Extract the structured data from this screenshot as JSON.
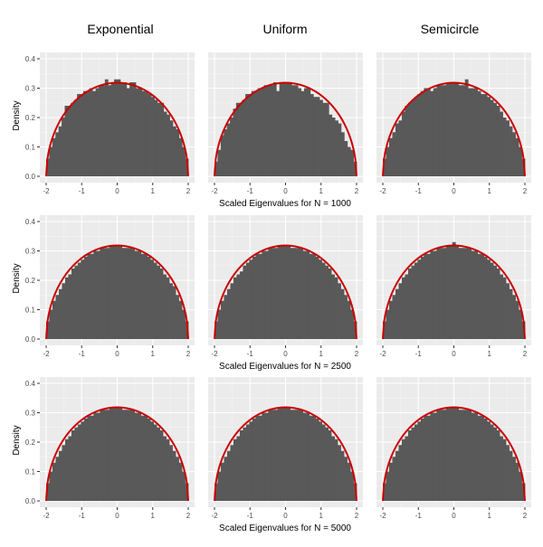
{
  "figure": {
    "column_titles": [
      "Exponential",
      "Uniform",
      "Semicircle"
    ],
    "ylabel": "Density",
    "row_xlabels": [
      "Scaled Eigenvalues for N = 1000",
      "Scaled Eigenvalues for N = 2500",
      "Scaled Eigenvalues for N = 5000"
    ],
    "colors": {
      "panel_background": "#ebebeb",
      "grid_major": "#ffffff",
      "bars": "#595959",
      "curve": "#cc0000"
    }
  },
  "chart_data": [
    {
      "type": "bar",
      "row": 0,
      "col": 0,
      "title": "Exponential",
      "xlabel": "Scaled Eigenvalues for N = 1000",
      "ylabel": "Density",
      "xlim": [
        -2,
        2
      ],
      "ylim": [
        0,
        0.4
      ],
      "xticks": [
        "-2",
        "-1",
        "0",
        "1",
        "2"
      ],
      "yticks": [
        "0.0",
        "0.1",
        "0.2",
        "0.3",
        "0.4"
      ],
      "grid": true,
      "overlay": "semicircle density",
      "bar_values": [
        0.06,
        0.1,
        0.13,
        0.15,
        0.17,
        0.2,
        0.24,
        0.24,
        0.25,
        0.26,
        0.28,
        0.28,
        0.29,
        0.29,
        0.3,
        0.29,
        0.3,
        0.31,
        0.31,
        0.33,
        0.31,
        0.32,
        0.33,
        0.33,
        0.32,
        0.32,
        0.3,
        0.32,
        0.32,
        0.3,
        0.3,
        0.29,
        0.29,
        0.28,
        0.27,
        0.26,
        0.25,
        0.25,
        0.22,
        0.21,
        0.19,
        0.17,
        0.16,
        0.13,
        0.1,
        0.06
      ]
    },
    {
      "type": "bar",
      "row": 0,
      "col": 1,
      "title": "Uniform",
      "xlabel": "Scaled Eigenvalues for N = 1000",
      "ylabel": "Density",
      "xlim": [
        -2,
        2
      ],
      "ylim": [
        0,
        0.4
      ],
      "xticks": [
        "-2",
        "-1",
        "0",
        "1",
        "2"
      ],
      "yticks": [
        "0.0",
        "0.1",
        "0.2",
        "0.3",
        "0.4"
      ],
      "grid": true,
      "overlay": "semicircle density",
      "bar_values": [
        0.05,
        0.09,
        0.14,
        0.16,
        0.18,
        0.2,
        0.23,
        0.25,
        0.25,
        0.26,
        0.28,
        0.28,
        0.29,
        0.29,
        0.3,
        0.3,
        0.31,
        0.31,
        0.31,
        0.32,
        0.29,
        0.32,
        0.32,
        0.32,
        0.32,
        0.31,
        0.31,
        0.3,
        0.29,
        0.3,
        0.3,
        0.28,
        0.27,
        0.27,
        0.26,
        0.25,
        0.25,
        0.21,
        0.2,
        0.19,
        0.18,
        0.15,
        0.12,
        0.1,
        0.09,
        0.05
      ]
    },
    {
      "type": "bar",
      "row": 0,
      "col": 2,
      "title": "Semicircle",
      "xlabel": "Scaled Eigenvalues for N = 1000",
      "ylabel": "Density",
      "xlim": [
        -2,
        2
      ],
      "ylim": [
        0,
        0.4
      ],
      "xticks": [
        "-2",
        "-1",
        "0",
        "1",
        "2"
      ],
      "yticks": [
        "0.0",
        "0.1",
        "0.2",
        "0.3",
        "0.4"
      ],
      "grid": true,
      "overlay": "semicircle density",
      "bar_values": [
        0.06,
        0.1,
        0.13,
        0.15,
        0.18,
        0.19,
        0.22,
        0.24,
        0.25,
        0.26,
        0.27,
        0.28,
        0.29,
        0.3,
        0.3,
        0.29,
        0.3,
        0.31,
        0.31,
        0.31,
        0.32,
        0.32,
        0.32,
        0.32,
        0.31,
        0.31,
        0.33,
        0.3,
        0.3,
        0.3,
        0.29,
        0.28,
        0.28,
        0.27,
        0.26,
        0.25,
        0.24,
        0.22,
        0.2,
        0.19,
        0.17,
        0.15,
        0.13,
        0.1,
        0.06
      ]
    },
    {
      "type": "bar",
      "row": 1,
      "col": 0,
      "title": "Exponential",
      "xlabel": "Scaled Eigenvalues for N = 2500",
      "ylabel": "Density",
      "xlim": [
        -2,
        2
      ],
      "ylim": [
        0,
        0.4
      ],
      "xticks": [
        "-2",
        "-1",
        "0",
        "1",
        "2"
      ],
      "yticks": [
        "0.0",
        "0.1",
        "0.2",
        "0.3",
        "0.4"
      ],
      "grid": true,
      "overlay": "semicircle density",
      "bar_values": [
        0.06,
        0.1,
        0.13,
        0.15,
        0.17,
        0.19,
        0.21,
        0.22,
        0.24,
        0.25,
        0.26,
        0.27,
        0.28,
        0.29,
        0.29,
        0.3,
        0.3,
        0.31,
        0.31,
        0.31,
        0.32,
        0.32,
        0.32,
        0.32,
        0.31,
        0.31,
        0.31,
        0.31,
        0.3,
        0.3,
        0.29,
        0.29,
        0.28,
        0.27,
        0.26,
        0.25,
        0.24,
        0.22,
        0.21,
        0.19,
        0.18,
        0.15,
        0.13,
        0.1,
        0.06
      ]
    },
    {
      "type": "bar",
      "row": 1,
      "col": 1,
      "title": "Uniform",
      "xlabel": "Scaled Eigenvalues for N = 2500",
      "ylabel": "Density",
      "xlim": [
        -2,
        2
      ],
      "ylim": [
        0,
        0.4
      ],
      "xticks": [
        "-2",
        "-1",
        "0",
        "1",
        "2"
      ],
      "yticks": [
        "0.0",
        "0.1",
        "0.2",
        "0.3",
        "0.4"
      ],
      "grid": true,
      "overlay": "semicircle density",
      "bar_values": [
        0.06,
        0.1,
        0.13,
        0.15,
        0.17,
        0.19,
        0.21,
        0.22,
        0.23,
        0.25,
        0.26,
        0.27,
        0.28,
        0.29,
        0.29,
        0.3,
        0.3,
        0.31,
        0.31,
        0.31,
        0.32,
        0.32,
        0.32,
        0.32,
        0.31,
        0.31,
        0.31,
        0.31,
        0.3,
        0.3,
        0.29,
        0.29,
        0.28,
        0.27,
        0.26,
        0.25,
        0.24,
        0.22,
        0.21,
        0.19,
        0.17,
        0.15,
        0.13,
        0.1,
        0.06
      ]
    },
    {
      "type": "bar",
      "row": 1,
      "col": 2,
      "title": "Semicircle",
      "xlabel": "Scaled Eigenvalues for N = 2500",
      "ylabel": "Density",
      "xlim": [
        -2,
        2
      ],
      "ylim": [
        0,
        0.4
      ],
      "xticks": [
        "-2",
        "-1",
        "0",
        "1",
        "2"
      ],
      "yticks": [
        "0.0",
        "0.1",
        "0.2",
        "0.3",
        "0.4"
      ],
      "grid": true,
      "overlay": "semicircle density",
      "bar_values": [
        0.06,
        0.1,
        0.13,
        0.15,
        0.17,
        0.19,
        0.21,
        0.22,
        0.24,
        0.25,
        0.26,
        0.27,
        0.28,
        0.29,
        0.29,
        0.3,
        0.3,
        0.31,
        0.31,
        0.31,
        0.32,
        0.32,
        0.33,
        0.32,
        0.31,
        0.31,
        0.31,
        0.31,
        0.3,
        0.3,
        0.29,
        0.29,
        0.28,
        0.27,
        0.26,
        0.25,
        0.24,
        0.22,
        0.21,
        0.19,
        0.17,
        0.15,
        0.13,
        0.1,
        0.06
      ]
    },
    {
      "type": "bar",
      "row": 2,
      "col": 0,
      "title": "Exponential",
      "xlabel": "Scaled Eigenvalues for N = 5000",
      "ylabel": "Density",
      "xlim": [
        -2,
        2
      ],
      "ylim": [
        0,
        0.4
      ],
      "xticks": [
        "-2",
        "-1",
        "0",
        "1",
        "2"
      ],
      "yticks": [
        "0.0",
        "0.1",
        "0.2",
        "0.3",
        "0.4"
      ],
      "grid": true,
      "overlay": "semicircle density",
      "bar_values": [
        0.06,
        0.1,
        0.13,
        0.15,
        0.17,
        0.19,
        0.21,
        0.22,
        0.24,
        0.25,
        0.26,
        0.27,
        0.28,
        0.29,
        0.29,
        0.3,
        0.3,
        0.31,
        0.31,
        0.31,
        0.32,
        0.32,
        0.32,
        0.32,
        0.31,
        0.31,
        0.31,
        0.31,
        0.3,
        0.3,
        0.29,
        0.29,
        0.28,
        0.27,
        0.26,
        0.25,
        0.24,
        0.22,
        0.21,
        0.19,
        0.17,
        0.15,
        0.13,
        0.1,
        0.06
      ]
    },
    {
      "type": "bar",
      "row": 2,
      "col": 1,
      "title": "Uniform",
      "xlabel": "Scaled Eigenvalues for N = 5000",
      "ylabel": "Density",
      "xlim": [
        -2,
        2
      ],
      "ylim": [
        0,
        0.4
      ],
      "xticks": [
        "-2",
        "-1",
        "0",
        "1",
        "2"
      ],
      "yticks": [
        "0.0",
        "0.1",
        "0.2",
        "0.3",
        "0.4"
      ],
      "grid": true,
      "overlay": "semicircle density",
      "bar_values": [
        0.06,
        0.1,
        0.13,
        0.15,
        0.17,
        0.19,
        0.21,
        0.22,
        0.24,
        0.25,
        0.26,
        0.27,
        0.28,
        0.29,
        0.29,
        0.3,
        0.3,
        0.31,
        0.31,
        0.31,
        0.32,
        0.32,
        0.32,
        0.32,
        0.31,
        0.31,
        0.31,
        0.31,
        0.3,
        0.3,
        0.29,
        0.29,
        0.28,
        0.27,
        0.26,
        0.25,
        0.24,
        0.22,
        0.21,
        0.19,
        0.17,
        0.15,
        0.13,
        0.1,
        0.06
      ]
    },
    {
      "type": "bar",
      "row": 2,
      "col": 2,
      "title": "Semicircle",
      "xlabel": "Scaled Eigenvalues for N = 5000",
      "ylabel": "Density",
      "xlim": [
        -2,
        2
      ],
      "ylim": [
        0,
        0.4
      ],
      "xticks": [
        "-2",
        "-1",
        "0",
        "1",
        "2"
      ],
      "yticks": [
        "0.0",
        "0.1",
        "0.2",
        "0.3",
        "0.4"
      ],
      "grid": true,
      "overlay": "semicircle density",
      "bar_values": [
        0.06,
        0.1,
        0.13,
        0.15,
        0.17,
        0.19,
        0.21,
        0.22,
        0.24,
        0.25,
        0.26,
        0.27,
        0.28,
        0.29,
        0.29,
        0.3,
        0.3,
        0.31,
        0.31,
        0.31,
        0.32,
        0.32,
        0.32,
        0.32,
        0.31,
        0.31,
        0.31,
        0.31,
        0.3,
        0.3,
        0.29,
        0.29,
        0.28,
        0.27,
        0.26,
        0.25,
        0.24,
        0.22,
        0.21,
        0.19,
        0.17,
        0.15,
        0.13,
        0.1,
        0.06
      ]
    }
  ]
}
